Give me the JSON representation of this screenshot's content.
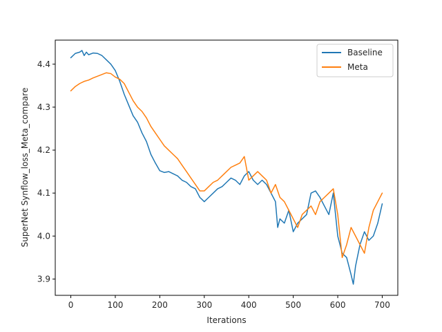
{
  "chart_data": {
    "type": "line",
    "title": "",
    "xlabel": "Iterations",
    "ylabel": "SuperNet Synflow_loss_Meta_compare",
    "xlim": [
      -35,
      735
    ],
    "ylim": [
      3.862,
      4.456
    ],
    "xticks": [
      0,
      100,
      200,
      300,
      400,
      500,
      600,
      700
    ],
    "yticks": [
      3.9,
      4.0,
      4.1,
      4.2,
      4.3,
      4.4
    ],
    "grid": false,
    "legend_position": "top-right",
    "series": [
      {
        "name": "Baseline",
        "color": "#1f77b4",
        "x": [
          0,
          10,
          20,
          25,
          30,
          35,
          40,
          50,
          60,
          70,
          80,
          90,
          100,
          110,
          120,
          130,
          140,
          150,
          160,
          170,
          180,
          190,
          200,
          210,
          220,
          230,
          240,
          250,
          260,
          270,
          280,
          290,
          295,
          300,
          310,
          320,
          330,
          340,
          350,
          360,
          370,
          380,
          390,
          400,
          410,
          420,
          430,
          440,
          450,
          460,
          465,
          470,
          480,
          490,
          500,
          510,
          520,
          530,
          540,
          550,
          560,
          570,
          580,
          590,
          600,
          610,
          620,
          630,
          635,
          640,
          650,
          660,
          670,
          680,
          690,
          700
        ],
        "y": [
          4.415,
          4.425,
          4.428,
          4.432,
          4.42,
          4.428,
          4.422,
          4.426,
          4.425,
          4.42,
          4.41,
          4.4,
          4.385,
          4.36,
          4.33,
          4.305,
          4.28,
          4.265,
          4.24,
          4.22,
          4.19,
          4.17,
          4.152,
          4.148,
          4.15,
          4.145,
          4.14,
          4.13,
          4.125,
          4.115,
          4.11,
          4.09,
          4.085,
          4.08,
          4.09,
          4.1,
          4.11,
          4.115,
          4.125,
          4.135,
          4.13,
          4.12,
          4.14,
          4.15,
          4.13,
          4.12,
          4.13,
          4.12,
          4.1,
          4.08,
          4.02,
          4.04,
          4.03,
          4.06,
          4.01,
          4.03,
          4.04,
          4.05,
          4.1,
          4.105,
          4.09,
          4.07,
          4.05,
          4.1,
          4.0,
          3.96,
          3.95,
          3.91,
          3.888,
          3.93,
          3.98,
          4.01,
          3.99,
          4.0,
          4.03,
          4.075
        ]
      },
      {
        "name": "Meta",
        "color": "#ff7f0e",
        "x": [
          0,
          10,
          20,
          30,
          40,
          50,
          60,
          70,
          80,
          90,
          100,
          110,
          120,
          130,
          140,
          150,
          160,
          170,
          180,
          190,
          200,
          210,
          220,
          230,
          240,
          250,
          260,
          270,
          280,
          290,
          300,
          310,
          320,
          330,
          340,
          350,
          360,
          370,
          380,
          390,
          400,
          410,
          420,
          430,
          440,
          450,
          460,
          470,
          480,
          490,
          500,
          510,
          520,
          530,
          540,
          550,
          560,
          570,
          580,
          590,
          600,
          610,
          620,
          630,
          640,
          650,
          660,
          670,
          680,
          690,
          700
        ],
        "y": [
          4.338,
          4.348,
          4.355,
          4.36,
          4.363,
          4.368,
          4.372,
          4.376,
          4.38,
          4.378,
          4.37,
          4.365,
          4.355,
          4.335,
          4.315,
          4.3,
          4.29,
          4.275,
          4.255,
          4.24,
          4.225,
          4.21,
          4.2,
          4.19,
          4.18,
          4.165,
          4.15,
          4.135,
          4.12,
          4.105,
          4.105,
          4.115,
          4.125,
          4.13,
          4.14,
          4.15,
          4.16,
          4.165,
          4.17,
          4.185,
          4.13,
          4.14,
          4.15,
          4.14,
          4.13,
          4.1,
          4.12,
          4.09,
          4.08,
          4.06,
          4.04,
          4.02,
          4.05,
          4.06,
          4.07,
          4.05,
          4.08,
          4.09,
          4.1,
          4.11,
          4.05,
          3.95,
          3.98,
          4.02,
          4.0,
          3.98,
          3.96,
          4.02,
          4.06,
          4.08,
          4.1
        ]
      }
    ]
  }
}
